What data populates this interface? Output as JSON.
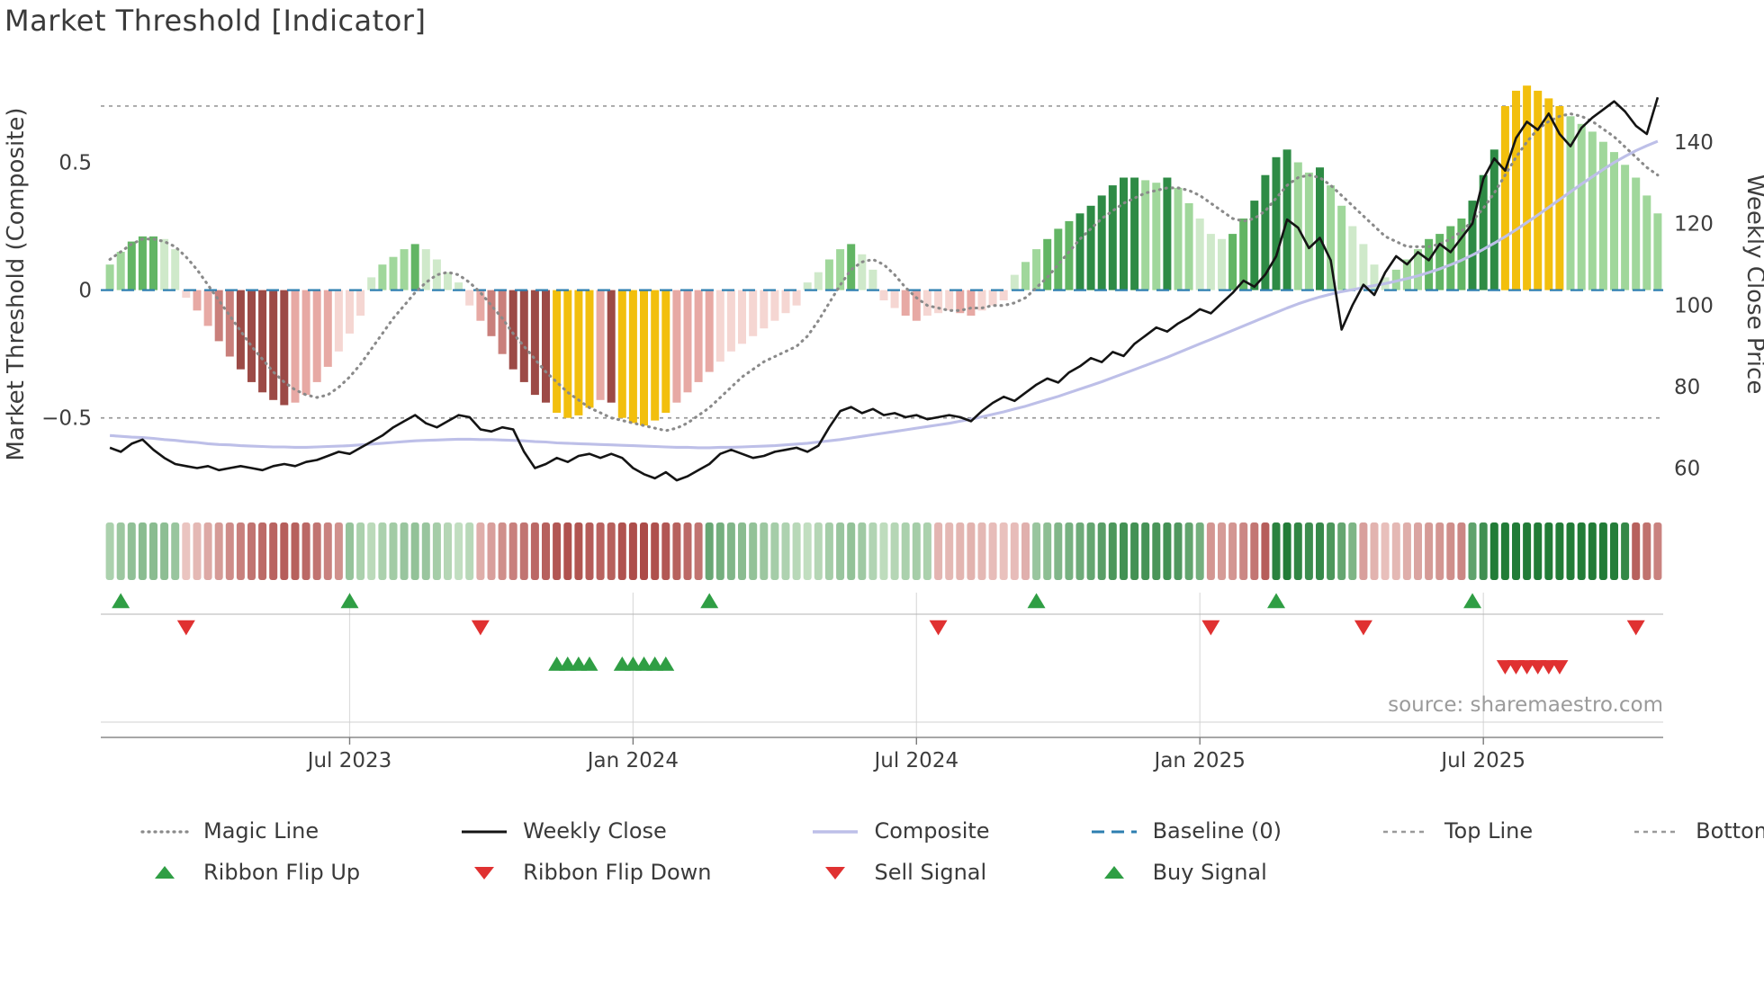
{
  "title": "Market Threshold [Indicator]",
  "source": "source: sharemaestro.com",
  "colors": {
    "gold": "#f2bf0d",
    "green_shades": [
      "#cfe9ca",
      "#a0d79b",
      "#62b564",
      "#2e8b45"
    ],
    "red_shades": [
      "#f5d6d2",
      "#e7a9a4",
      "#c97f7b",
      "#9c4a46"
    ],
    "ribbon_up_light": "#ddefd8",
    "ribbon_up_dark": "#1e7a34",
    "ribbon_down_light": "#f6dad6",
    "ribbon_down_dark": "#a84340",
    "flip_up": "#2f9e44",
    "flip_down": "#e03131",
    "buy": "#2f9e44",
    "sell": "#e03131",
    "weekly_close": "#141414",
    "composite": "#bdbfe8",
    "magic": "#8a8a8a",
    "baseline": "#2e7fb0",
    "guide": "#9a9a9a",
    "grid": "#dcdcdc"
  },
  "legend": {
    "items": [
      {
        "id": "magic-line",
        "label": "Magic Line",
        "swatch": "dotted-gray"
      },
      {
        "id": "weekly-close",
        "label": "Weekly Close",
        "swatch": "solid-black"
      },
      {
        "id": "composite",
        "label": "Composite",
        "swatch": "solid-lavender"
      },
      {
        "id": "baseline",
        "label": "Baseline (0)",
        "swatch": "dashed-blue"
      },
      {
        "id": "top-line",
        "label": "Top Line",
        "swatch": "dashed-gray"
      },
      {
        "id": "bottom-line",
        "label": "Bottom Line",
        "swatch": "dashed-gray"
      },
      {
        "id": "ribbon-flip-up",
        "label": "Ribbon Flip Up",
        "swatch": "triangle-up-green"
      },
      {
        "id": "ribbon-flip-down",
        "label": "Ribbon Flip Down",
        "swatch": "triangle-down-red"
      },
      {
        "id": "sell-signal",
        "label": "Sell Signal",
        "swatch": "triangle-down-red"
      },
      {
        "id": "buy-signal",
        "label": "Buy Signal",
        "swatch": "triangle-up-green"
      }
    ]
  },
  "chart_data": {
    "type": "combo (bar + line + ribbon heatmap + signal markers)",
    "frequency": "weekly",
    "n_points": 143,
    "left_axis": {
      "title": "Market Threshold (Composite)",
      "tick_labels": [
        "0.5",
        "0",
        "−0.5"
      ],
      "tick_values": [
        0.5,
        0,
        -0.5
      ],
      "ylim": [
        -0.8,
        0.85
      ]
    },
    "right_axis": {
      "title": "Weekly Close Price",
      "tick_labels": [
        "140",
        "120",
        "100",
        "80",
        "60"
      ],
      "tick_values": [
        140,
        120,
        100,
        80,
        60
      ],
      "ylim": [
        53.5,
        157
      ]
    },
    "x_axis": {
      "ticks": [
        {
          "index": 22,
          "label": "Jul 2023"
        },
        {
          "index": 48,
          "label": "Jan 2024"
        },
        {
          "index": 74,
          "label": "Jul 2024"
        },
        {
          "index": 100,
          "label": "Jan 2025"
        },
        {
          "index": 126,
          "label": "Jul 2025"
        }
      ]
    },
    "baseline": 0,
    "top_line": 0.72,
    "bottom_line": -0.5,
    "threshold_bars": [
      0.1,
      0.15,
      0.19,
      0.21,
      0.21,
      0.2,
      0.16,
      -0.03,
      -0.08,
      -0.14,
      -0.2,
      -0.26,
      -0.31,
      -0.36,
      -0.4,
      -0.43,
      -0.45,
      -0.44,
      -0.41,
      -0.36,
      -0.3,
      -0.24,
      -0.17,
      -0.1,
      0.05,
      0.1,
      0.13,
      0.16,
      0.18,
      0.16,
      0.12,
      0.07,
      0.03,
      -0.06,
      -0.12,
      -0.18,
      -0.25,
      -0.31,
      -0.36,
      -0.41,
      -0.44,
      -0.48,
      -0.5,
      -0.49,
      -0.46,
      -0.43,
      -0.44,
      -0.5,
      -0.52,
      -0.53,
      -0.51,
      -0.48,
      -0.44,
      -0.4,
      -0.36,
      -0.32,
      -0.28,
      -0.24,
      -0.21,
      -0.18,
      -0.15,
      -0.12,
      -0.09,
      -0.06,
      0.03,
      0.07,
      0.12,
      0.16,
      0.18,
      0.14,
      0.08,
      -0.04,
      -0.07,
      -0.1,
      -0.12,
      -0.1,
      -0.09,
      -0.08,
      -0.09,
      -0.1,
      -0.08,
      -0.06,
      -0.04,
      0.06,
      0.11,
      0.16,
      0.2,
      0.24,
      0.27,
      0.3,
      0.33,
      0.37,
      0.41,
      0.44,
      0.44,
      0.43,
      0.42,
      0.44,
      0.4,
      0.34,
      0.28,
      0.22,
      0.2,
      0.22,
      0.28,
      0.35,
      0.45,
      0.52,
      0.55,
      0.5,
      0.46,
      0.48,
      0.41,
      0.33,
      0.25,
      0.18,
      0.1,
      0.05,
      0.08,
      0.12,
      0.16,
      0.2,
      0.22,
      0.25,
      0.28,
      0.35,
      0.45,
      0.55,
      0.72,
      0.78,
      0.8,
      0.78,
      0.75,
      0.72,
      0.68,
      0.65,
      0.62,
      0.58,
      0.54,
      0.49,
      0.44,
      0.37,
      0.3
    ],
    "gold_indices": [
      41,
      42,
      43,
      44,
      47,
      48,
      49,
      50,
      51,
      128,
      129,
      130,
      131,
      132,
      133
    ],
    "weekly_close": [
      65,
      64,
      66,
      67,
      64.5,
      62.5,
      61,
      60.5,
      60,
      60.5,
      59.5,
      60,
      60.5,
      60,
      59.5,
      60.5,
      61,
      60.5,
      61.5,
      62,
      63,
      64,
      63.5,
      65,
      66.5,
      68,
      70,
      71.5,
      73,
      71,
      70,
      71.5,
      73,
      72.5,
      69.5,
      69,
      70,
      69.5,
      64,
      60,
      61,
      62.5,
      61.5,
      63,
      63.5,
      62.5,
      63.5,
      62.5,
      60,
      58.5,
      57.5,
      59,
      57,
      58,
      59.5,
      61,
      63.5,
      64.5,
      63.5,
      62.5,
      63,
      64,
      64.5,
      65,
      64,
      65.5,
      70,
      74,
      75,
      73.5,
      74.5,
      73,
      73.5,
      72.5,
      73,
      72,
      72.5,
      73,
      72.5,
      71.5,
      74,
      76,
      77.5,
      76.5,
      78.5,
      80.5,
      82,
      81,
      83.5,
      85,
      87,
      86,
      88.5,
      87.5,
      90.5,
      92.5,
      94.5,
      93.5,
      95.5,
      97,
      99,
      98,
      100.5,
      103,
      106,
      104.5,
      107.5,
      112,
      121,
      119,
      114,
      116.5,
      111,
      94,
      100,
      105,
      102.5,
      108,
      112,
      110,
      113,
      111,
      115,
      113,
      116.5,
      120,
      131,
      136,
      133,
      141,
      145,
      143,
      147,
      142,
      139,
      143.5,
      146,
      148,
      150,
      147.5,
      144,
      142,
      151
    ],
    "composite": [
      68,
      67.8,
      67.6,
      67.5,
      67.3,
      67,
      66.8,
      66.5,
      66.3,
      66,
      65.8,
      65.7,
      65.5,
      65.4,
      65.3,
      65.2,
      65.2,
      65.1,
      65.1,
      65.2,
      65.3,
      65.4,
      65.5,
      65.7,
      65.9,
      66.1,
      66.3,
      66.5,
      66.7,
      66.8,
      66.9,
      67,
      67.1,
      67.1,
      67,
      67,
      66.9,
      66.8,
      66.7,
      66.5,
      66.4,
      66.2,
      66.1,
      66,
      65.9,
      65.8,
      65.7,
      65.6,
      65.5,
      65.4,
      65.3,
      65.2,
      65.1,
      65.1,
      65,
      65,
      65.1,
      65.1,
      65.2,
      65.3,
      65.4,
      65.5,
      65.7,
      65.9,
      66.1,
      66.4,
      66.7,
      67,
      67.4,
      67.8,
      68.2,
      68.6,
      69,
      69.4,
      69.8,
      70.2,
      70.6,
      71,
      71.5,
      72,
      72.6,
      73.2,
      73.8,
      74.5,
      75.2,
      76,
      76.8,
      77.6,
      78.5,
      79.4,
      80.3,
      81.2,
      82.2,
      83.2,
      84.2,
      85.2,
      86.2,
      87.2,
      88.3,
      89.4,
      90.5,
      91.6,
      92.7,
      93.8,
      94.9,
      96,
      97.1,
      98.2,
      99.3,
      100.3,
      101.2,
      102,
      102.7,
      103.3,
      103.8,
      104.3,
      104.8,
      105.3,
      105.9,
      106.5,
      107.2,
      108,
      108.9,
      109.9,
      111,
      112.3,
      113.7,
      115.2,
      116.8,
      118.5,
      120.3,
      122.1,
      124,
      125.9,
      127.8,
      129.7,
      131.5,
      133.3,
      135,
      136.5,
      137.9,
      139.1,
      140.2
    ],
    "magic_line": [
      0.12,
      0.15,
      0.18,
      0.2,
      0.2,
      0.19,
      0.17,
      0.13,
      0.08,
      0.02,
      -0.04,
      -0.1,
      -0.16,
      -0.22,
      -0.27,
      -0.32,
      -0.36,
      -0.39,
      -0.41,
      -0.42,
      -0.41,
      -0.38,
      -0.34,
      -0.29,
      -0.23,
      -0.17,
      -0.11,
      -0.06,
      -0.01,
      0.03,
      0.06,
      0.07,
      0.06,
      0.03,
      -0.01,
      -0.06,
      -0.11,
      -0.17,
      -0.22,
      -0.27,
      -0.32,
      -0.36,
      -0.4,
      -0.43,
      -0.46,
      -0.48,
      -0.5,
      -0.51,
      -0.52,
      -0.53,
      -0.54,
      -0.55,
      -0.54,
      -0.52,
      -0.49,
      -0.46,
      -0.42,
      -0.38,
      -0.34,
      -0.31,
      -0.28,
      -0.26,
      -0.24,
      -0.22,
      -0.18,
      -0.12,
      -0.05,
      0.02,
      0.08,
      0.11,
      0.12,
      0.1,
      0.06,
      0.01,
      -0.03,
      -0.06,
      -0.07,
      -0.08,
      -0.08,
      -0.07,
      -0.07,
      -0.06,
      -0.06,
      -0.05,
      -0.03,
      0.01,
      0.05,
      0.1,
      0.15,
      0.2,
      0.24,
      0.28,
      0.31,
      0.34,
      0.36,
      0.38,
      0.39,
      0.4,
      0.4,
      0.39,
      0.37,
      0.34,
      0.31,
      0.28,
      0.27,
      0.28,
      0.31,
      0.36,
      0.41,
      0.44,
      0.45,
      0.44,
      0.41,
      0.37,
      0.33,
      0.29,
      0.25,
      0.21,
      0.19,
      0.17,
      0.17,
      0.17,
      0.18,
      0.2,
      0.23,
      0.27,
      0.32,
      0.38,
      0.45,
      0.52,
      0.58,
      0.63,
      0.66,
      0.68,
      0.69,
      0.68,
      0.66,
      0.63,
      0.6,
      0.56,
      0.52,
      0.48,
      0.45
    ],
    "ribbon_segments": [
      {
        "state": "up",
        "start": 0,
        "end": 6
      },
      {
        "state": "down",
        "start": 7,
        "end": 21
      },
      {
        "state": "up",
        "start": 22,
        "end": 33
      },
      {
        "state": "down",
        "start": 34,
        "end": 54
      },
      {
        "state": "up",
        "start": 55,
        "end": 75
      },
      {
        "state": "down",
        "start": 76,
        "end": 84
      },
      {
        "state": "up",
        "start": 85,
        "end": 100
      },
      {
        "state": "down",
        "start": 101,
        "end": 106
      },
      {
        "state": "up",
        "start": 107,
        "end": 114
      },
      {
        "state": "down",
        "start": 115,
        "end": 124
      },
      {
        "state": "up",
        "start": 125,
        "end": 139
      },
      {
        "state": "down",
        "start": 140,
        "end": 142
      }
    ],
    "ribbon_flip_up": [
      1,
      22,
      55,
      85,
      107,
      125
    ],
    "ribbon_flip_down": [
      7,
      34,
      76,
      101,
      115,
      140
    ],
    "buy_signals": [
      41,
      42,
      43,
      44,
      47,
      48,
      49,
      50,
      51
    ],
    "sell_signals": [
      128,
      129,
      130,
      131,
      132,
      133
    ]
  }
}
